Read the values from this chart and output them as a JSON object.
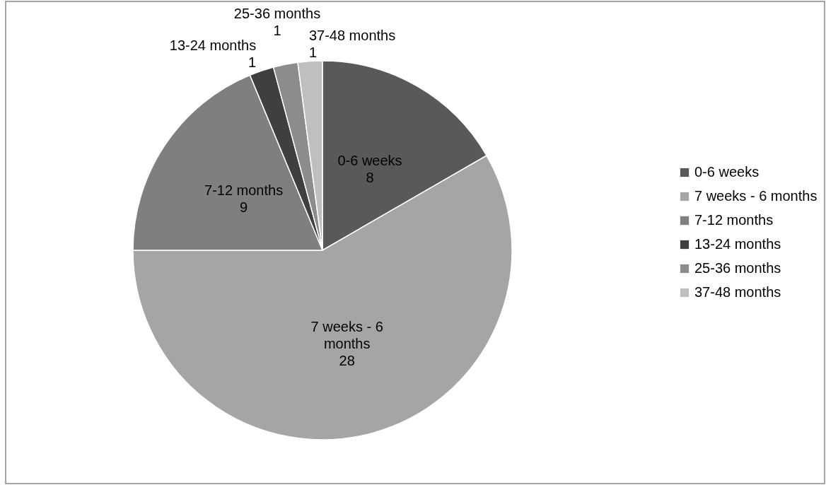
{
  "chart_data": {
    "type": "pie",
    "categories": [
      "0-6 weeks",
      "7 weeks - 6 months",
      "7-12 months",
      "13-24 months",
      "25-36 months",
      "37-48 months"
    ],
    "values": [
      8,
      28,
      9,
      1,
      1,
      1
    ],
    "colors": [
      "#595959",
      "#a5a5a5",
      "#7f7f7f",
      "#3f3f3f",
      "#8c8c8c",
      "#bfbfbf"
    ],
    "data_labels": true,
    "legend": "right"
  }
}
